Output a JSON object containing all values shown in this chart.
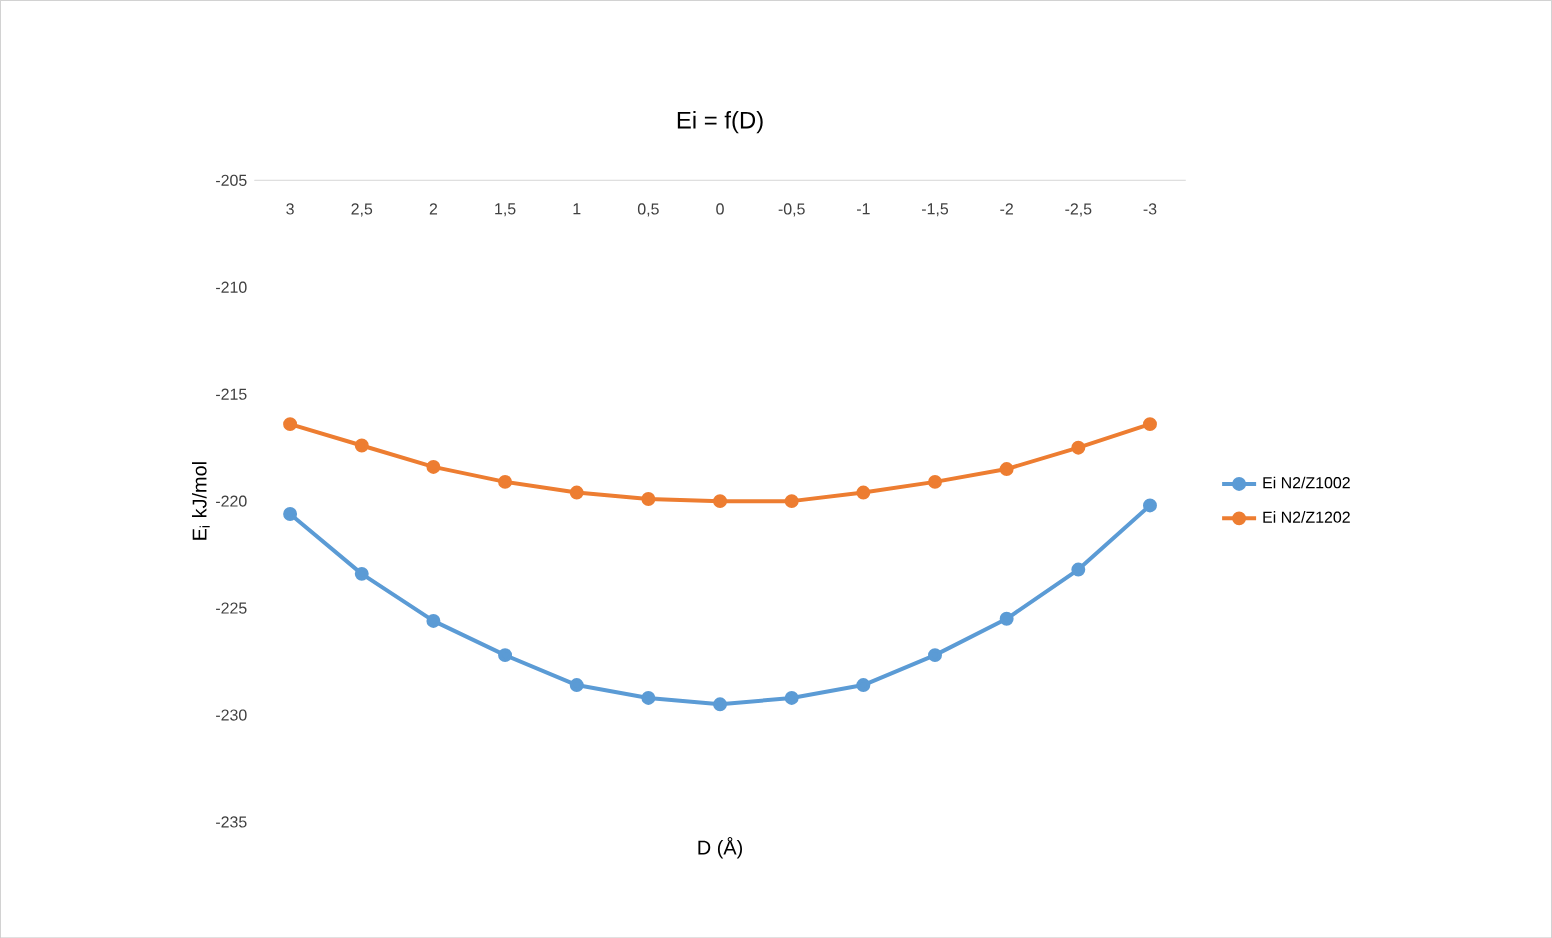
{
  "chart_data": {
    "type": "line",
    "title": "Ei = f(D)",
    "xlabel": "D (Å)",
    "ylabel": "E$_{i}$ kJ/mol",
    "categories": [
      "3",
      "2,5",
      "2",
      "1,5",
      "1",
      "0,5",
      "0",
      "-0,5",
      "-1",
      "-1,5",
      "-2",
      "-2,5",
      "-3"
    ],
    "series": [
      {
        "name": "Ei N2/Z1002",
        "color": "#5b9bd5",
        "values": [
          -220.6,
          -223.4,
          -225.6,
          -227.2,
          -228.6,
          -229.2,
          -229.5,
          -229.2,
          -228.6,
          -227.2,
          -225.5,
          -223.2,
          -220.2
        ]
      },
      {
        "name": "Ei N2/Z1202",
        "color": "#ed7d31",
        "values": [
          -216.4,
          -217.4,
          -218.4,
          -219.1,
          -219.6,
          -219.9,
          -220.0,
          -220.0,
          -219.6,
          -219.1,
          -218.5,
          -217.5,
          -216.4
        ]
      }
    ],
    "ylim": [
      -235,
      -205
    ],
    "yticks": [
      -235,
      -230,
      -225,
      -220,
      -215,
      -210,
      -205
    ],
    "grid": false,
    "legend": "right",
    "marker": "circle",
    "line_style": "solid"
  }
}
